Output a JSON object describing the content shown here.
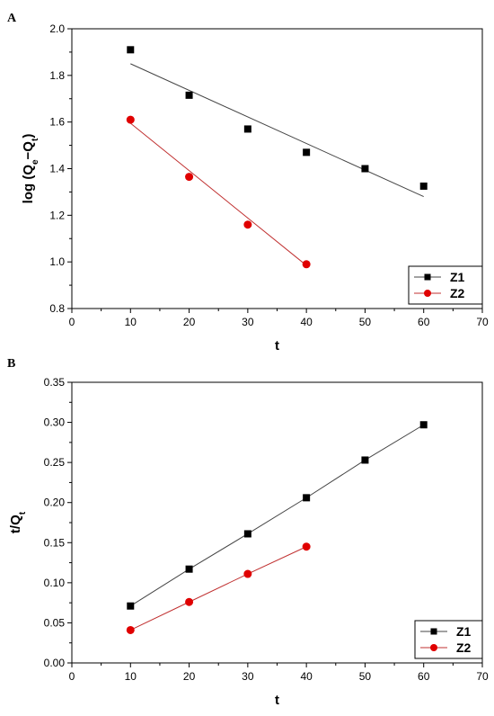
{
  "chart_data": [
    {
      "type": "scatter",
      "panel_label": "A",
      "xlabel": "t",
      "ylabel": {
        "base": "log (Q",
        "sub1": "e",
        "mid": "−Q",
        "sub2": "t",
        "end": ")"
      },
      "xlim": [
        0,
        70
      ],
      "ylim": [
        0.8,
        2.0
      ],
      "xticks": [
        0,
        10,
        20,
        30,
        40,
        50,
        60,
        70
      ],
      "xtick_labels": [
        "0",
        "10",
        "20",
        "30",
        "40",
        "50",
        "60",
        "70"
      ],
      "yticks": [
        0.8,
        1.0,
        1.2,
        1.4,
        1.6,
        1.8,
        2.0
      ],
      "ytick_labels": [
        "0.8",
        "1.0",
        "1.2",
        "1.4",
        "1.6",
        "1.8",
        "2.0"
      ],
      "grid": false,
      "legend_position": "bottom-right",
      "series": [
        {
          "name": "Z1",
          "marker": "square",
          "color": "#000000",
          "line_color": "#444444",
          "x": [
            10,
            20,
            30,
            40,
            50,
            60
          ],
          "y": [
            1.91,
            1.715,
            1.57,
            1.47,
            1.4,
            1.325
          ],
          "fit": {
            "x": [
              10,
              60
            ],
            "y": [
              1.85,
              1.28
            ]
          }
        },
        {
          "name": "Z2",
          "marker": "circle",
          "color": "#e00000",
          "line_color": "#c03030",
          "x": [
            10,
            20,
            30,
            40
          ],
          "y": [
            1.61,
            1.365,
            1.16,
            0.99
          ],
          "fit": {
            "x": [
              10,
              40
            ],
            "y": [
              1.595,
              0.985
            ]
          }
        }
      ]
    },
    {
      "type": "line",
      "panel_label": "B",
      "xlabel": "t",
      "ylabel": {
        "base": "t/Q",
        "sub": "t"
      },
      "xlim": [
        0,
        70
      ],
      "ylim": [
        0,
        0.35
      ],
      "xticks": [
        0,
        10,
        20,
        30,
        40,
        50,
        60,
        70
      ],
      "xtick_labels": [
        "0",
        "10",
        "20",
        "30",
        "40",
        "50",
        "60",
        "70"
      ],
      "yticks": [
        0,
        0.05,
        0.1,
        0.15,
        0.2,
        0.25,
        0.3,
        0.35
      ],
      "ytick_labels": [
        "0.00",
        "0.05",
        "0.10",
        "0.15",
        "0.20",
        "0.25",
        "0.30",
        "0.35"
      ],
      "grid": false,
      "legend_position": "bottom-right",
      "series": [
        {
          "name": "Z1",
          "marker": "square",
          "color": "#000000",
          "line_color": "#444444",
          "x": [
            10,
            20,
            30,
            40,
            50,
            60
          ],
          "y": [
            0.071,
            0.117,
            0.161,
            0.206,
            0.253,
            0.297
          ]
        },
        {
          "name": "Z2",
          "marker": "circle",
          "color": "#e00000",
          "line_color": "#c03030",
          "x": [
            10,
            20,
            30,
            40
          ],
          "y": [
            0.041,
            0.076,
            0.111,
            0.145
          ]
        }
      ]
    }
  ]
}
